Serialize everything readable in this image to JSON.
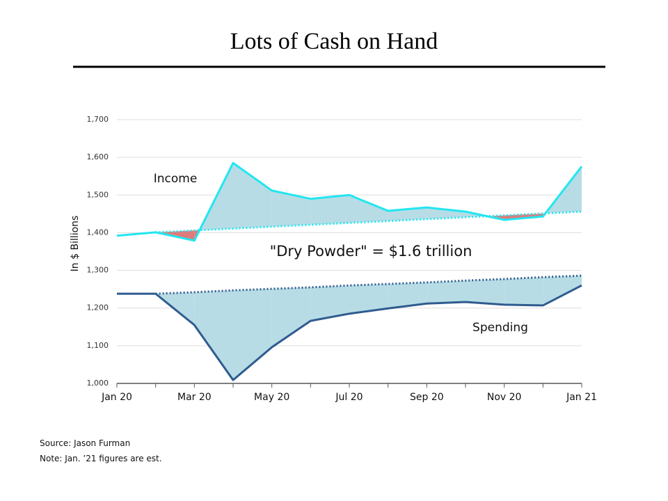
{
  "title": "Lots of Cash on Hand",
  "chart_data": {
    "type": "line",
    "y_label": "In $ Billions",
    "annotation": "\"Dry Powder\" = $1.6 trillion",
    "categories": [
      "Jan 20",
      null,
      "Mar 20",
      null,
      "May 20",
      null,
      "Jul 20",
      null,
      "Sep 20",
      null,
      "Nov 20",
      null,
      "Jan 21"
    ],
    "ylim": [
      1000,
      1700
    ],
    "yticks": [
      {
        "value": 1000,
        "label": "1,000"
      },
      {
        "value": 1100,
        "label": "1,100"
      },
      {
        "value": 1200,
        "label": "1,200"
      },
      {
        "value": 1300,
        "label": "1,300"
      },
      {
        "value": 1400,
        "label": "1,400"
      },
      {
        "value": 1500,
        "label": "1,500"
      },
      {
        "value": 1600,
        "label": "1,600"
      },
      {
        "value": 1700,
        "label": "1,700"
      }
    ],
    "grid": true,
    "series": [
      {
        "name": "Income",
        "color": "#22e6f0",
        "above_fill": "#b7dce5",
        "below_fill": "#e07a7a",
        "values": [
          1392,
          1401,
          1379,
          1585,
          1512,
          1490,
          1500,
          1458,
          1467,
          1456,
          1434,
          1443,
          1576
        ],
        "trend": [
          null,
          1401,
          1406,
          1411,
          1416,
          1421,
          1426,
          1431,
          1436,
          1441,
          1446,
          1451,
          1456
        ]
      },
      {
        "name": "Spending",
        "color": "#2f5b8f",
        "above_fill": "#b7dce5",
        "below_fill": "#b7dce5",
        "values": [
          1238,
          1238,
          1155,
          1009,
          1096,
          1166,
          1185,
          1199,
          1212,
          1216,
          1209,
          1207,
          1260
        ],
        "trend": [
          null,
          1238,
          1242,
          1247,
          1251,
          1255,
          1260,
          1264,
          1268,
          1273,
          1277,
          1282,
          1286
        ]
      }
    ]
  },
  "footer": {
    "source": "Source: Jason Furman",
    "note": "Note: Jan. ’21 figures are est."
  }
}
